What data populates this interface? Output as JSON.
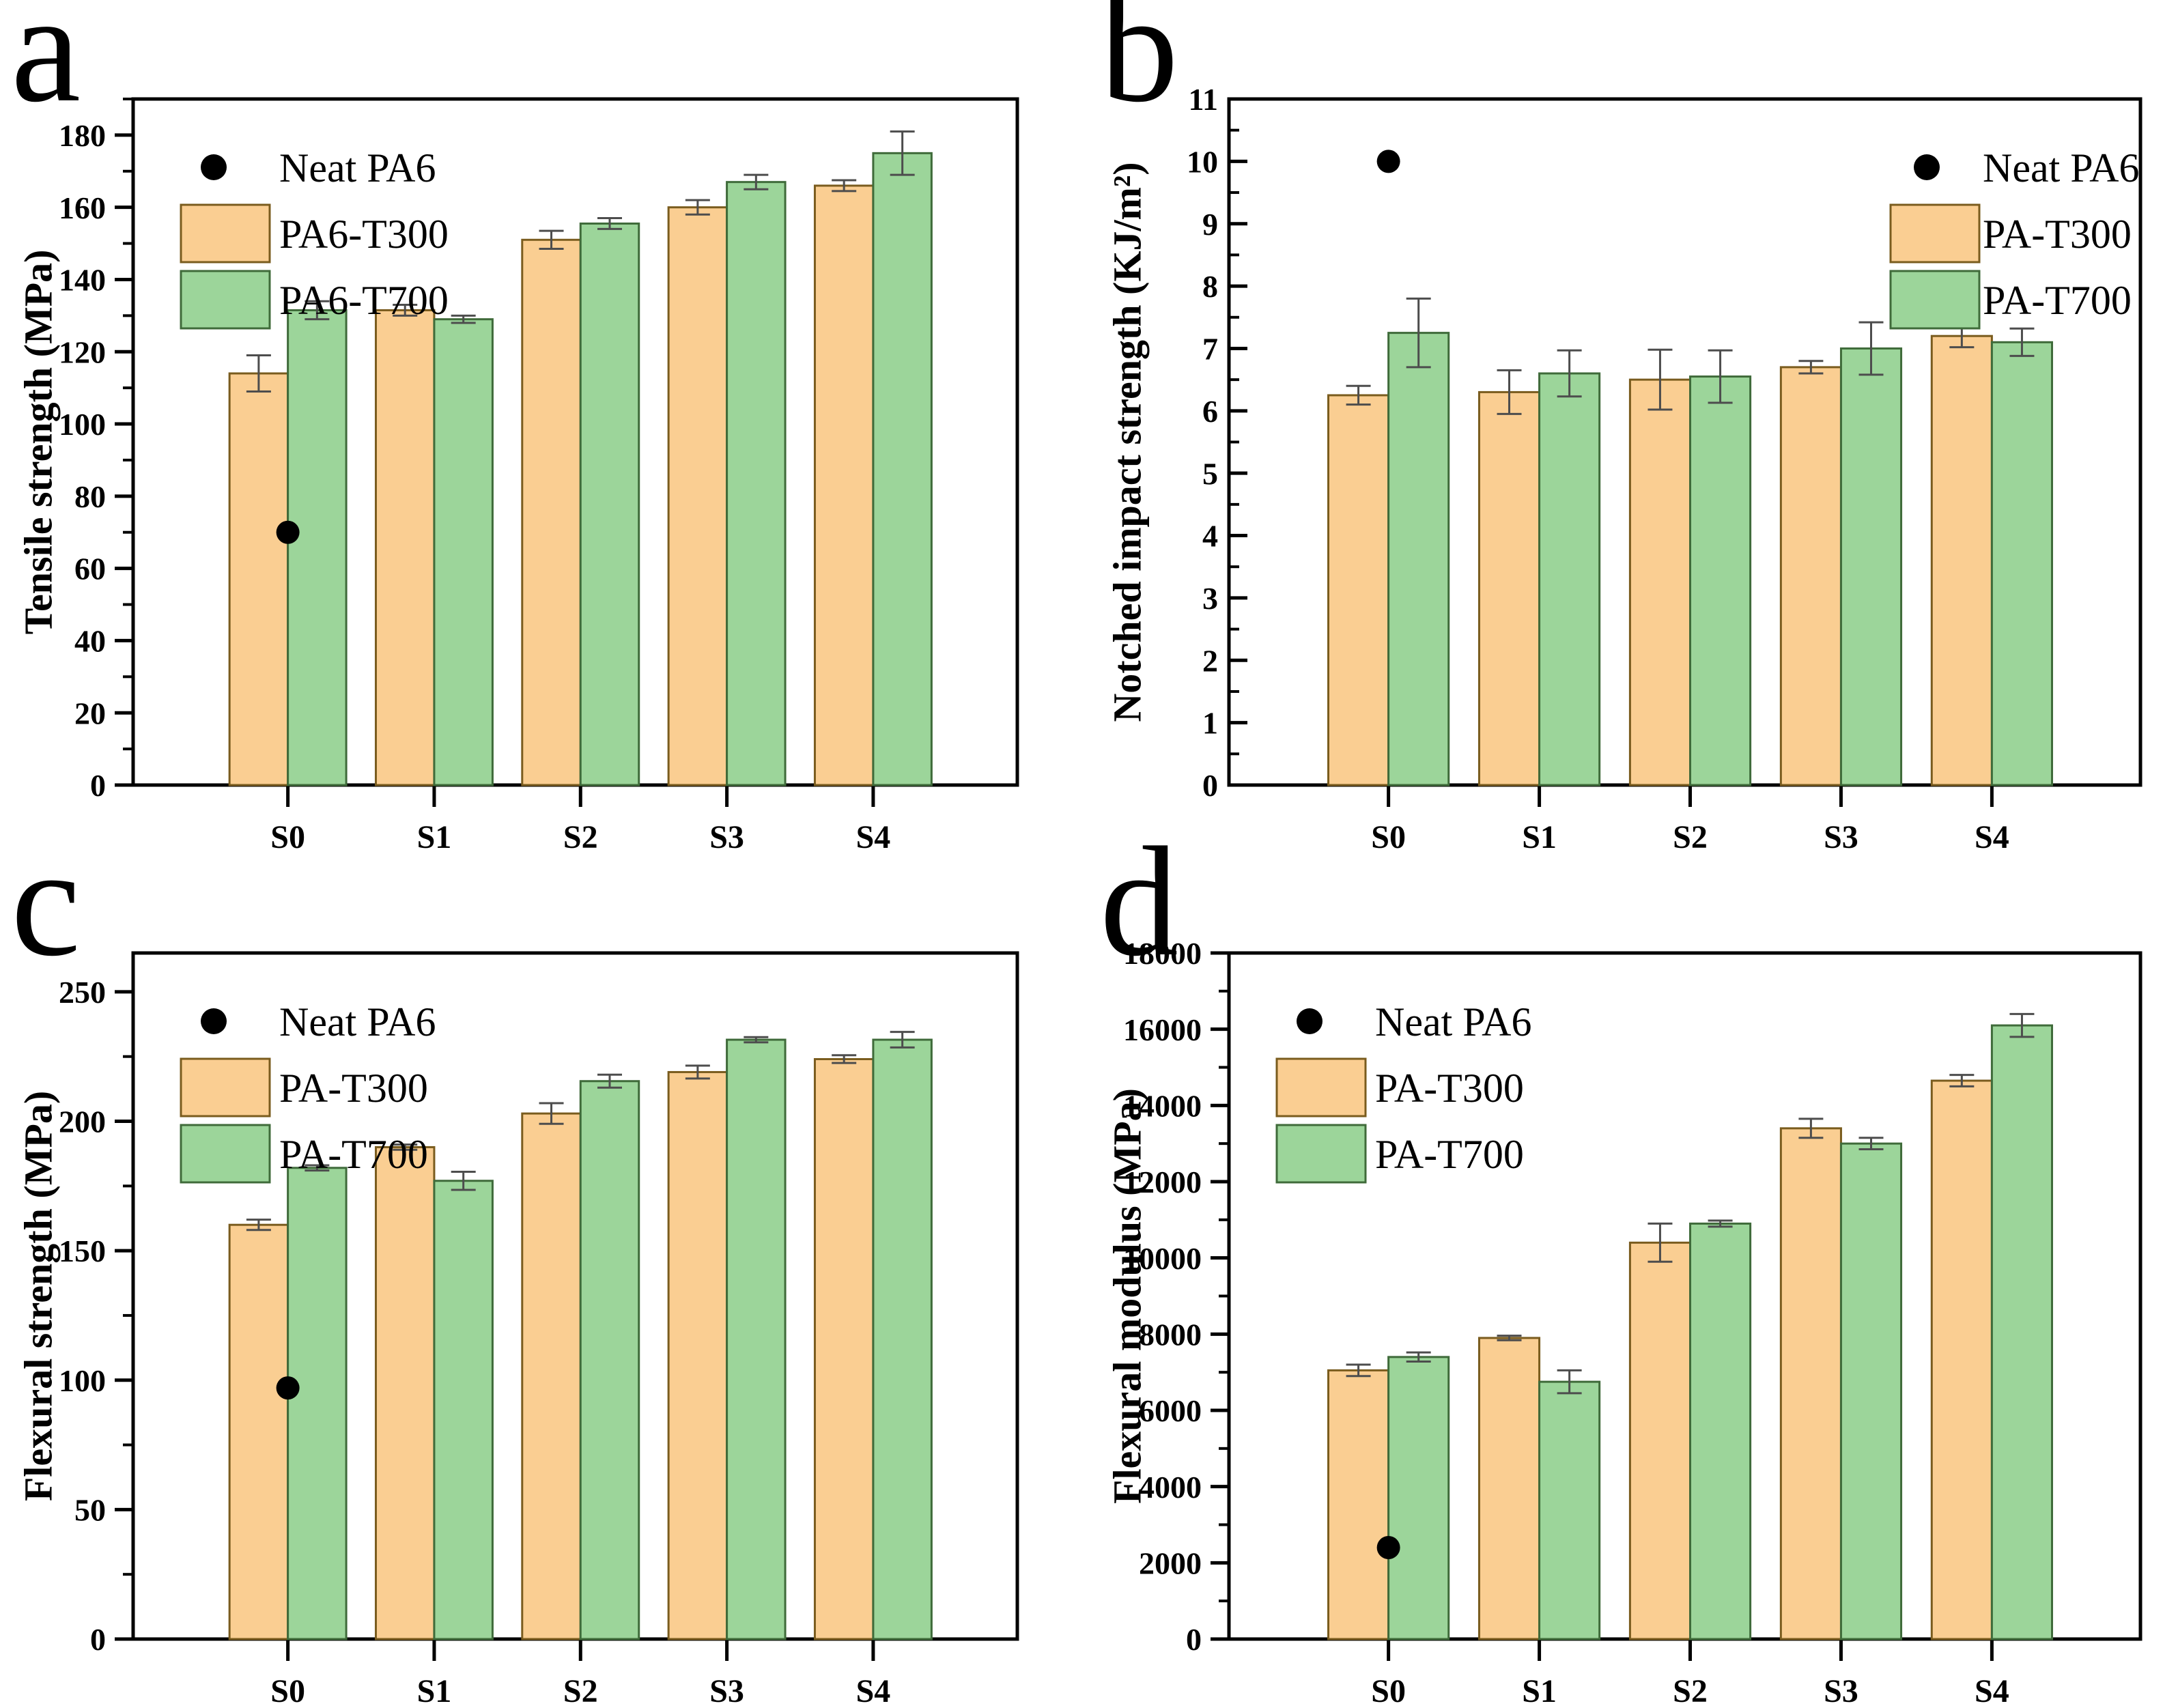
{
  "figure": {
    "background": "#ffffff",
    "point_marker": "filled-circle"
  },
  "colors": {
    "series1_fill": "#FACE92",
    "series1_border": "#7A5C1E",
    "series2_fill": "#9CD59A",
    "series2_border": "#3F6B3A",
    "point": "#000000",
    "error_bar": "#4D4D4D",
    "axis": "#000000",
    "text": "#000000"
  },
  "chart_data": [
    {
      "panel_letter": "a",
      "type": "bar",
      "title": "",
      "xlabel": "",
      "ylabel": "Tensile strength (MPa)",
      "ylim": [
        0,
        190
      ],
      "ytick_step": 20,
      "yminor_step": 10,
      "ytick_dir": "out",
      "grid": false,
      "categories": [
        "S0",
        "S1",
        "S2",
        "S3",
        "S4"
      ],
      "series": [
        {
          "name": "PA6-T300",
          "values": [
            114,
            131.5,
            151,
            160,
            166
          ],
          "errors": [
            5,
            1.5,
            2.5,
            2,
            1.5
          ]
        },
        {
          "name": "PA6-T700",
          "values": [
            131.5,
            129,
            155.5,
            167,
            175
          ],
          "errors": [
            2.5,
            1,
            1.5,
            2,
            6
          ]
        }
      ],
      "point": {
        "label": "Neat PA6",
        "category": "S0",
        "value": 70
      },
      "legend_position": "top-left",
      "legend_entries": [
        "Neat PA6",
        "PA6-T300",
        "PA6-T700"
      ]
    },
    {
      "panel_letter": "b",
      "type": "bar",
      "title": "",
      "xlabel": "",
      "ylabel": "Notched impact strength (KJ/m²)",
      "ylim": [
        0,
        11
      ],
      "ytick_step": 1,
      "yminor_step": 0.5,
      "ytick_dir": "in",
      "grid": false,
      "categories": [
        "S0",
        "S1",
        "S2",
        "S3",
        "S4"
      ],
      "series": [
        {
          "name": "PA-T300",
          "values": [
            6.25,
            6.3,
            6.5,
            6.7,
            7.2
          ],
          "errors": [
            0.15,
            0.35,
            0.48,
            0.1,
            0.18
          ]
        },
        {
          "name": "PA-T700",
          "values": [
            7.25,
            6.6,
            6.55,
            7.0,
            7.1
          ],
          "errors": [
            0.55,
            0.37,
            0.42,
            0.42,
            0.22
          ]
        }
      ],
      "point": {
        "label": "Neat PA6",
        "category": "S0",
        "value": 10
      },
      "legend_position": "top-right",
      "legend_entries": [
        "Neat PA6",
        "PA-T300",
        "PA-T700"
      ]
    },
    {
      "panel_letter": "c",
      "type": "bar",
      "title": "",
      "xlabel": "",
      "ylabel": "Flexural strength (MPa)",
      "ylim": [
        0,
        265
      ],
      "ytick_step": 50,
      "yminor_step": 25,
      "ytick_dir": "out",
      "grid": false,
      "categories": [
        "S0",
        "S1",
        "S2",
        "S3",
        "S4"
      ],
      "series": [
        {
          "name": "PA-T300",
          "values": [
            160,
            190,
            203,
            219,
            224
          ],
          "errors": [
            2,
            1,
            4,
            2.5,
            1.5
          ]
        },
        {
          "name": "PA-T700",
          "values": [
            182,
            177,
            215.5,
            231.5,
            231.5
          ],
          "errors": [
            1,
            3.5,
            2.5,
            1,
            3
          ]
        }
      ],
      "point": {
        "label": "Neat PA6",
        "category": "S0",
        "value": 97
      },
      "legend_position": "top-left",
      "legend_entries": [
        "Neat PA6",
        "PA-T300",
        "PA-T700"
      ]
    },
    {
      "panel_letter": "d",
      "type": "bar",
      "title": "",
      "xlabel": "",
      "ylabel": "Flexural modulus (MPa)",
      "ylim": [
        0,
        18000
      ],
      "ytick_step": 2000,
      "yminor_step": 1000,
      "ytick_dir": "out",
      "grid": false,
      "categories": [
        "S0",
        "S1",
        "S2",
        "S3",
        "S4"
      ],
      "series": [
        {
          "name": "PA-T300",
          "values": [
            7050,
            7900,
            10400,
            13400,
            14650
          ],
          "errors": [
            150,
            60,
            500,
            250,
            150
          ]
        },
        {
          "name": "PA-T700",
          "values": [
            7400,
            6750,
            10900,
            13000,
            16100
          ],
          "errors": [
            120,
            300,
            80,
            150,
            300
          ]
        }
      ],
      "point": {
        "label": "Neat PA6",
        "category": "S0",
        "value": 2400
      },
      "legend_position": "top-left",
      "legend_entries": [
        "Neat PA6",
        "PA-T300",
        "PA-T700"
      ]
    }
  ]
}
